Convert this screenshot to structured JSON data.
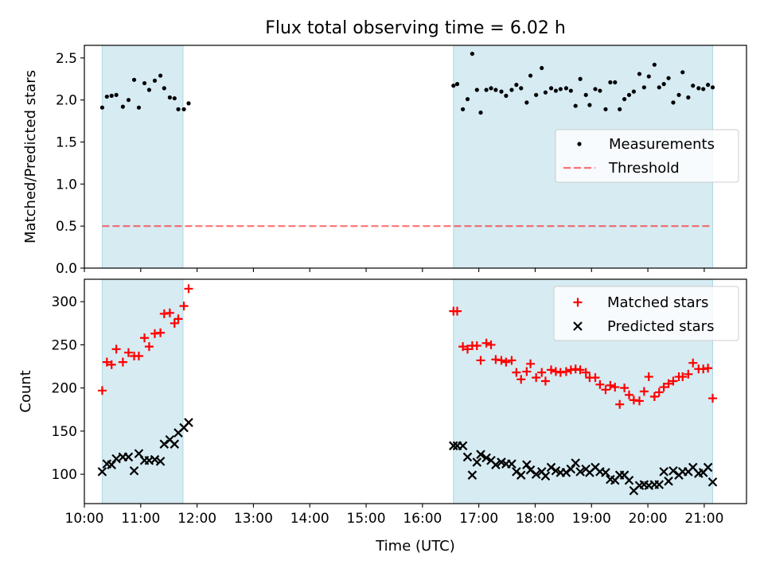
{
  "figure": {
    "title": "Flux total observing time = 6.02 h",
    "xlabel": "Time (UTC)"
  },
  "colors": {
    "span": "#add8e6",
    "threshold": "#ff0000",
    "matched": "#ff0000",
    "predicted": "#000000",
    "measurement": "#000000"
  },
  "chart_data": [
    {
      "type": "scatter",
      "ylabel": "Matched/Predicted stars",
      "xlim": [
        "10:00",
        "21:45"
      ],
      "ylim": [
        0,
        2.65
      ],
      "yticks": [
        "0.0",
        "0.5",
        "1.0",
        "1.5",
        "2.0",
        "2.5"
      ],
      "shaded_intervals": [
        [
          "10:19",
          "11:45"
        ],
        [
          "16:33",
          "21:09"
        ]
      ],
      "threshold": {
        "name": "Threshold",
        "value": 0.5,
        "x": [
          "10:19",
          "21:09"
        ]
      },
      "legend": {
        "placement": "center-right",
        "entries": [
          "Measurements",
          "Threshold"
        ]
      },
      "series": [
        {
          "name": "Measurements",
          "x": [
            "10:19",
            "10:24",
            "10:29",
            "10:34",
            "10:41",
            "10:47",
            "10:53",
            "10:58",
            "11:04",
            "11:09",
            "11:15",
            "11:21",
            "11:25",
            "11:31",
            "11:36",
            "11:40",
            "11:46",
            "11:51",
            "16:33",
            "16:37",
            "16:43",
            "16:48",
            "16:53",
            "16:58",
            "17:02",
            "17:08",
            "17:13",
            "17:18",
            "17:24",
            "17:29",
            "17:35",
            "17:40",
            "17:45",
            "17:51",
            "17:55",
            "18:01",
            "18:07",
            "18:11",
            "18:17",
            "18:22",
            "18:27",
            "18:33",
            "18:38",
            "18:43",
            "18:48",
            "18:54",
            "18:58",
            "19:04",
            "19:09",
            "19:15",
            "19:20",
            "19:25",
            "19:30",
            "19:35",
            "19:40",
            "19:45",
            "19:51",
            "19:56",
            "20:01",
            "20:07",
            "20:12",
            "20:17",
            "20:22",
            "20:27",
            "20:33",
            "20:37",
            "20:43",
            "20:48",
            "20:54",
            "20:59",
            "21:04",
            "21:09"
          ],
          "y": [
            1.91,
            2.04,
            2.05,
            2.06,
            1.92,
            2.0,
            2.24,
            1.91,
            2.2,
            2.12,
            2.23,
            2.29,
            2.14,
            2.03,
            2.02,
            1.89,
            1.89,
            1.96,
            2.17,
            2.19,
            1.89,
            2.01,
            2.55,
            2.12,
            1.85,
            2.12,
            2.14,
            2.12,
            2.1,
            2.05,
            2.12,
            2.18,
            2.14,
            1.97,
            2.29,
            2.06,
            2.38,
            2.09,
            2.14,
            2.11,
            2.13,
            2.14,
            2.11,
            1.93,
            2.25,
            2.06,
            1.94,
            2.13,
            2.11,
            1.89,
            2.21,
            2.21,
            1.89,
            2.01,
            2.06,
            2.1,
            2.31,
            2.15,
            2.28,
            2.42,
            2.15,
            2.19,
            2.26,
            1.97,
            2.06,
            2.33,
            2.03,
            2.17,
            2.14,
            2.13,
            2.18,
            2.15
          ]
        }
      ]
    },
    {
      "type": "scatter",
      "ylabel": "Count",
      "xlabel": "Time (UTC)",
      "xlim": [
        "10:00",
        "21:45"
      ],
      "ylim": [
        66,
        326
      ],
      "yticks": [
        "100",
        "150",
        "200",
        "250",
        "300"
      ],
      "xticks": [
        "10:00",
        "11:00",
        "12:00",
        "13:00",
        "14:00",
        "15:00",
        "16:00",
        "17:00",
        "18:00",
        "19:00",
        "20:00",
        "21:00"
      ],
      "shaded_intervals": [
        [
          "10:19",
          "11:45"
        ],
        [
          "16:33",
          "21:09"
        ]
      ],
      "legend": {
        "placement": "top-right",
        "entries": [
          "Matched stars",
          "Predicted stars"
        ]
      },
      "series": [
        {
          "name": "Matched stars",
          "marker": "+",
          "x": [
            "10:19",
            "10:24",
            "10:29",
            "10:34",
            "10:41",
            "10:47",
            "10:53",
            "10:58",
            "11:04",
            "11:09",
            "11:15",
            "11:21",
            "11:25",
            "11:31",
            "11:36",
            "11:40",
            "11:46",
            "11:51",
            "16:33",
            "16:37",
            "16:43",
            "16:48",
            "16:53",
            "16:58",
            "17:02",
            "17:08",
            "17:13",
            "17:18",
            "17:24",
            "17:29",
            "17:35",
            "17:40",
            "17:45",
            "17:51",
            "17:55",
            "18:01",
            "18:07",
            "18:11",
            "18:17",
            "18:22",
            "18:27",
            "18:33",
            "18:38",
            "18:43",
            "18:48",
            "18:54",
            "18:58",
            "19:04",
            "19:09",
            "19:15",
            "19:20",
            "19:25",
            "19:30",
            "19:35",
            "19:40",
            "19:45",
            "19:51",
            "19:56",
            "20:01",
            "20:07",
            "20:12",
            "20:17",
            "20:22",
            "20:27",
            "20:33",
            "20:37",
            "20:43",
            "20:48",
            "20:54",
            "20:59",
            "21:04",
            "21:09"
          ],
          "y": [
            197,
            230,
            227,
            245,
            230,
            241,
            237,
            237,
            258,
            248,
            263,
            264,
            286,
            287,
            275,
            280,
            295,
            315,
            289,
            289,
            248,
            245,
            249,
            249,
            232,
            252,
            250,
            233,
            232,
            230,
            232,
            218,
            210,
            219,
            228,
            212,
            218,
            208,
            221,
            219,
            218,
            219,
            221,
            222,
            221,
            218,
            212,
            212,
            204,
            198,
            203,
            201,
            181,
            200,
            192,
            186,
            185,
            196,
            213,
            190,
            195,
            201,
            205,
            208,
            213,
            213,
            216,
            229,
            222,
            222,
            223,
            188
          ]
        },
        {
          "name": "Predicted stars",
          "marker": "x",
          "x": [
            "10:19",
            "10:24",
            "10:29",
            "10:34",
            "10:41",
            "10:47",
            "10:53",
            "10:58",
            "11:04",
            "11:09",
            "11:15",
            "11:21",
            "11:25",
            "11:31",
            "11:36",
            "11:40",
            "11:46",
            "11:51",
            "16:33",
            "16:37",
            "16:43",
            "16:48",
            "16:53",
            "16:58",
            "17:02",
            "17:08",
            "17:13",
            "17:18",
            "17:24",
            "17:29",
            "17:35",
            "17:40",
            "17:45",
            "17:51",
            "17:55",
            "18:01",
            "18:07",
            "18:11",
            "18:17",
            "18:22",
            "18:27",
            "18:33",
            "18:38",
            "18:43",
            "18:48",
            "18:54",
            "18:58",
            "19:04",
            "19:09",
            "19:15",
            "19:20",
            "19:25",
            "19:30",
            "19:35",
            "19:40",
            "19:45",
            "19:51",
            "19:56",
            "20:01",
            "20:07",
            "20:12",
            "20:17",
            "20:22",
            "20:27",
            "20:33",
            "20:37",
            "20:43",
            "20:48",
            "20:54",
            "20:59",
            "21:04",
            "21:09"
          ],
          "y": [
            103,
            112,
            111,
            118,
            120,
            120,
            104,
            124,
            116,
            116,
            117,
            115,
            135,
            140,
            135,
            148,
            154,
            160,
            133,
            133,
            133,
            120,
            99,
            114,
            123,
            119,
            116,
            111,
            114,
            112,
            112,
            103,
            99,
            111,
            105,
            100,
            103,
            98,
            108,
            104,
            102,
            102,
            106,
            113,
            103,
            106,
            102,
            108,
            103,
            102,
            94,
            93,
            99,
            99,
            93,
            81,
            87,
            88,
            87,
            88,
            88,
            103,
            92,
            104,
            99,
            103,
            103,
            108,
            101,
            102,
            108,
            91
          ]
        }
      ]
    }
  ]
}
